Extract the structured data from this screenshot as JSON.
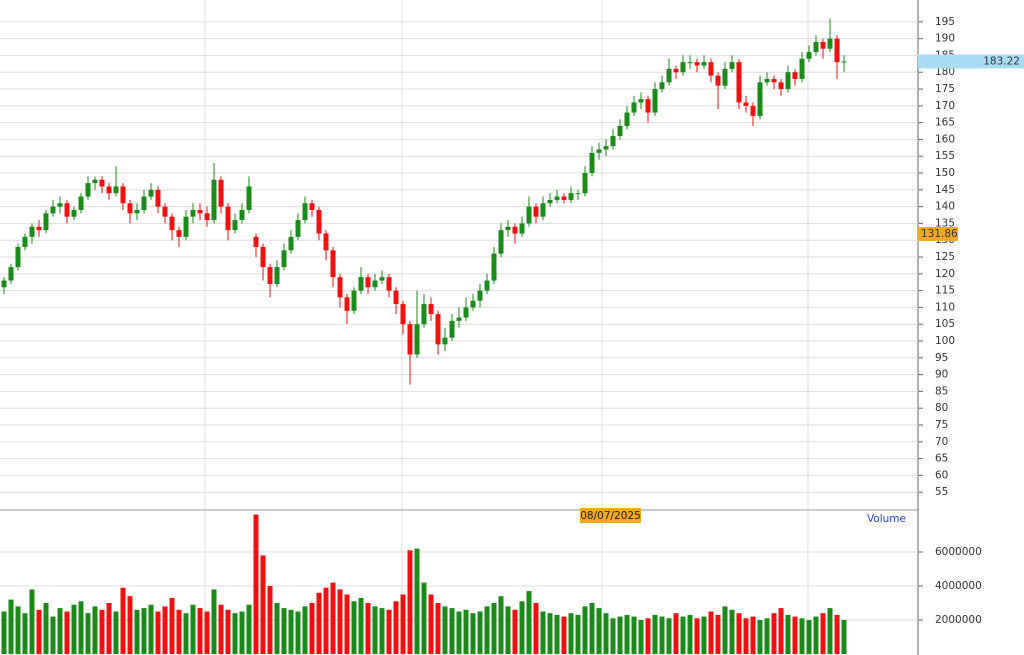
{
  "chart_data": {
    "type": "candlestick",
    "ylim": [
      50,
      201.5
    ],
    "yticks": [
      55,
      60,
      65,
      70,
      75,
      80,
      85,
      90,
      95,
      100,
      105,
      110,
      115,
      120,
      125,
      130,
      135,
      140,
      145,
      150,
      155,
      160,
      165,
      170,
      175,
      180,
      185,
      190,
      195
    ],
    "vlim": [
      0,
      8470000
    ],
    "vticks": [
      2000000,
      4000000,
      6000000
    ],
    "volume_label": "Volume",
    "date_label": "08/07/2025",
    "last_price": 183.22,
    "marker_price": 131.86,
    "up_color": "#1a8a1a",
    "down_color": "#f01010",
    "grid": true,
    "candles": [
      [
        116,
        119,
        114,
        118
      ],
      [
        118,
        123,
        117,
        122
      ],
      [
        122,
        129,
        121,
        128
      ],
      [
        128,
        132,
        127,
        131
      ],
      [
        131,
        135,
        129,
        134
      ],
      [
        134,
        136,
        131,
        133
      ],
      [
        133,
        139,
        132,
        138
      ],
      [
        138,
        142,
        137,
        140
      ],
      [
        140,
        143,
        138,
        141
      ],
      [
        141,
        142,
        135,
        137
      ],
      [
        137,
        140,
        136,
        139
      ],
      [
        139,
        144,
        138,
        143
      ],
      [
        143,
        149,
        142,
        147
      ],
      [
        147,
        149,
        145,
        148
      ],
      [
        148,
        149,
        144,
        146
      ],
      [
        146,
        147,
        142,
        144
      ],
      [
        144,
        152,
        143,
        146
      ],
      [
        146,
        147,
        139,
        141
      ],
      [
        141,
        142,
        135,
        138
      ],
      [
        138,
        141,
        136,
        139
      ],
      [
        139,
        145,
        138,
        143
      ],
      [
        143,
        147,
        142,
        145
      ],
      [
        145,
        146,
        138,
        140
      ],
      [
        140,
        141,
        135,
        137
      ],
      [
        137,
        138,
        130,
        133
      ],
      [
        133,
        134,
        128,
        131
      ],
      [
        131,
        139,
        130,
        137
      ],
      [
        137,
        141,
        135,
        139
      ],
      [
        139,
        141,
        136,
        138
      ],
      [
        138,
        140,
        134,
        136
      ],
      [
        136,
        153,
        135,
        148
      ],
      [
        148,
        149,
        138,
        140
      ],
      [
        140,
        141,
        130,
        133
      ],
      [
        133,
        138,
        132,
        136
      ],
      [
        136,
        141,
        135,
        139
      ],
      [
        139,
        149,
        138,
        146
      ],
      [
        131,
        132,
        125,
        128
      ],
      [
        128,
        129,
        118,
        122
      ],
      [
        122,
        123,
        113,
        117
      ],
      [
        117,
        124,
        116,
        122
      ],
      [
        122,
        129,
        121,
        127
      ],
      [
        127,
        133,
        126,
        131
      ],
      [
        131,
        138,
        130,
        136
      ],
      [
        136,
        143,
        135,
        141
      ],
      [
        141,
        142,
        137,
        139
      ],
      [
        139,
        140,
        130,
        132
      ],
      [
        132,
        133,
        124,
        127
      ],
      [
        127,
        128,
        116,
        119
      ],
      [
        119,
        120,
        110,
        113
      ],
      [
        113,
        114,
        105,
        109
      ],
      [
        109,
        116,
        108,
        115
      ],
      [
        115,
        122,
        114,
        119
      ],
      [
        119,
        120,
        114,
        116
      ],
      [
        116,
        120,
        115,
        118
      ],
      [
        118,
        121,
        117,
        119
      ],
      [
        119,
        120,
        113,
        115
      ],
      [
        115,
        116,
        108,
        111
      ],
      [
        111,
        112,
        102,
        105
      ],
      [
        105,
        106,
        87,
        96
      ],
      [
        96,
        115,
        95,
        105
      ],
      [
        105,
        114,
        104,
        111
      ],
      [
        111,
        113,
        106,
        108
      ],
      [
        108,
        109,
        96,
        99
      ],
      [
        99,
        104,
        97,
        101
      ],
      [
        101,
        108,
        100,
        106
      ],
      [
        106,
        110,
        104,
        107
      ],
      [
        107,
        113,
        106,
        110
      ],
      [
        110,
        114,
        109,
        112
      ],
      [
        112,
        117,
        110,
        115
      ],
      [
        115,
        120,
        114,
        118
      ],
      [
        118,
        128,
        117,
        126
      ],
      [
        126,
        135,
        125,
        133
      ],
      [
        133,
        136,
        131,
        134
      ],
      [
        134,
        135,
        129,
        132
      ],
      [
        132,
        137,
        131,
        135
      ],
      [
        135,
        143,
        134,
        140
      ],
      [
        140,
        141,
        135,
        137
      ],
      [
        137,
        143,
        136,
        141
      ],
      [
        141,
        144,
        140,
        142
      ],
      [
        142,
        145,
        141,
        143
      ],
      [
        143,
        144,
        141,
        142
      ],
      [
        142,
        146,
        141,
        144
      ],
      [
        144,
        145,
        142,
        144
      ],
      [
        144,
        152,
        143,
        150
      ],
      [
        150,
        158,
        149,
        156
      ],
      [
        156,
        159,
        154,
        157
      ],
      [
        157,
        160,
        155,
        158
      ],
      [
        158,
        163,
        157,
        161
      ],
      [
        161,
        166,
        160,
        164
      ],
      [
        164,
        170,
        163,
        168
      ],
      [
        168,
        173,
        167,
        171
      ],
      [
        171,
        174,
        169,
        172
      ],
      [
        172,
        173,
        165,
        168
      ],
      [
        168,
        177,
        167,
        175
      ],
      [
        175,
        179,
        174,
        177
      ],
      [
        177,
        184,
        176,
        181
      ],
      [
        181,
        182,
        178,
        180
      ],
      [
        180,
        185,
        179,
        183
      ],
      [
        183,
        185,
        181,
        183
      ],
      [
        183,
        184,
        180,
        182
      ],
      [
        182,
        185,
        181,
        183
      ],
      [
        183,
        184,
        177,
        179
      ],
      [
        179,
        180,
        169,
        176
      ],
      [
        176,
        183,
        175,
        181
      ],
      [
        181,
        185,
        180,
        183
      ],
      [
        183,
        184,
        169,
        171
      ],
      [
        171,
        173,
        168,
        170
      ],
      [
        170,
        171,
        164,
        167
      ],
      [
        167,
        179,
        166,
        177
      ],
      [
        177,
        180,
        176,
        178
      ],
      [
        178,
        179,
        175,
        177
      ],
      [
        177,
        178,
        173,
        175
      ],
      [
        175,
        182,
        174,
        180
      ],
      [
        180,
        181,
        176,
        178
      ],
      [
        178,
        186,
        177,
        184
      ],
      [
        184,
        188,
        183,
        186
      ],
      [
        186,
        191,
        185,
        189
      ],
      [
        189,
        190,
        184,
        187
      ],
      [
        187,
        196,
        186,
        190
      ],
      [
        190,
        191,
        178,
        183
      ],
      [
        183,
        185,
        180,
        183.22
      ]
    ],
    "volume": [
      2500000,
      3200000,
      2800000,
      2400000,
      3800000,
      2600000,
      3000000,
      2200000,
      2700000,
      2500000,
      2900000,
      3100000,
      2400000,
      2800000,
      2600000,
      3000000,
      2500000,
      3900000,
      3400000,
      2600000,
      2700000,
      2900000,
      2500000,
      2800000,
      3300000,
      2600000,
      2400000,
      2900000,
      2700000,
      2500000,
      3800000,
      2900000,
      2600000,
      2400000,
      2500000,
      2900000,
      8200000,
      5800000,
      4000000,
      3000000,
      2700000,
      2600000,
      2500000,
      2800000,
      3000000,
      3600000,
      3900000,
      4200000,
      3800000,
      3500000,
      3100000,
      3300000,
      3000000,
      2800000,
      2700000,
      2600000,
      3100000,
      3500000,
      6100000,
      6200000,
      4200000,
      3500000,
      3000000,
      2800000,
      2700000,
      2500000,
      2600000,
      2400000,
      2500000,
      2800000,
      3000000,
      3400000,
      2800000,
      2600000,
      3100000,
      3700000,
      3000000,
      2500000,
      2400000,
      2300000,
      2200000,
      2400000,
      2300000,
      2800000,
      3000000,
      2700000,
      2400000,
      2100000,
      2200000,
      2300000,
      2200000,
      2000000,
      2100000,
      2300000,
      2200000,
      2100000,
      2400000,
      2200000,
      2300000,
      2100000,
      2200000,
      2500000,
      2300000,
      2800000,
      2600000,
      2400000,
      2100000,
      2200000,
      2000000,
      2100000,
      2400000,
      2700000,
      2300000,
      2200000,
      2100000,
      2000000,
      2200000,
      2400000,
      2700000,
      2300000,
      2000000
    ]
  }
}
